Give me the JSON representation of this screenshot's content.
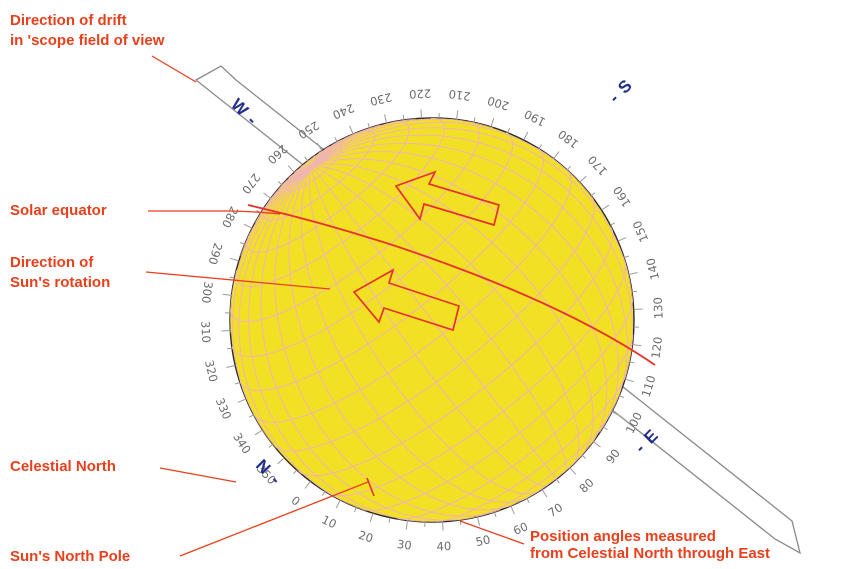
{
  "callouts": {
    "drift": [
      "Direction of drift",
      "in 'scope field of view"
    ],
    "equator": "Solar equator",
    "rotation": [
      "Direction of",
      "Sun's rotation"
    ],
    "celestial_north": "Celestial North",
    "north_pole": "Sun's North Pole",
    "position_angles": [
      "Position angles measured",
      "from Celestial North through East"
    ]
  },
  "compass": {
    "north": "N",
    "south": "S",
    "east": "E",
    "west": "W"
  },
  "position_angle_labels": [
    "0",
    "10",
    "20",
    "30",
    "40",
    "50",
    "60",
    "70",
    "80",
    "90",
    "100",
    "110",
    "120",
    "130",
    "140",
    "150",
    "160",
    "170",
    "180",
    "190",
    "200",
    "210",
    "220",
    "230",
    "240",
    "250",
    "260",
    "270",
    "280",
    "290",
    "300",
    "310",
    "320",
    "330",
    "340",
    "350"
  ],
  "colors": {
    "sun_fill": "#f2e024",
    "grid": "#f0b4b4",
    "callout": "#e8401c",
    "compass": "#1f2e8c",
    "tick_text": "#6b6b6b"
  }
}
